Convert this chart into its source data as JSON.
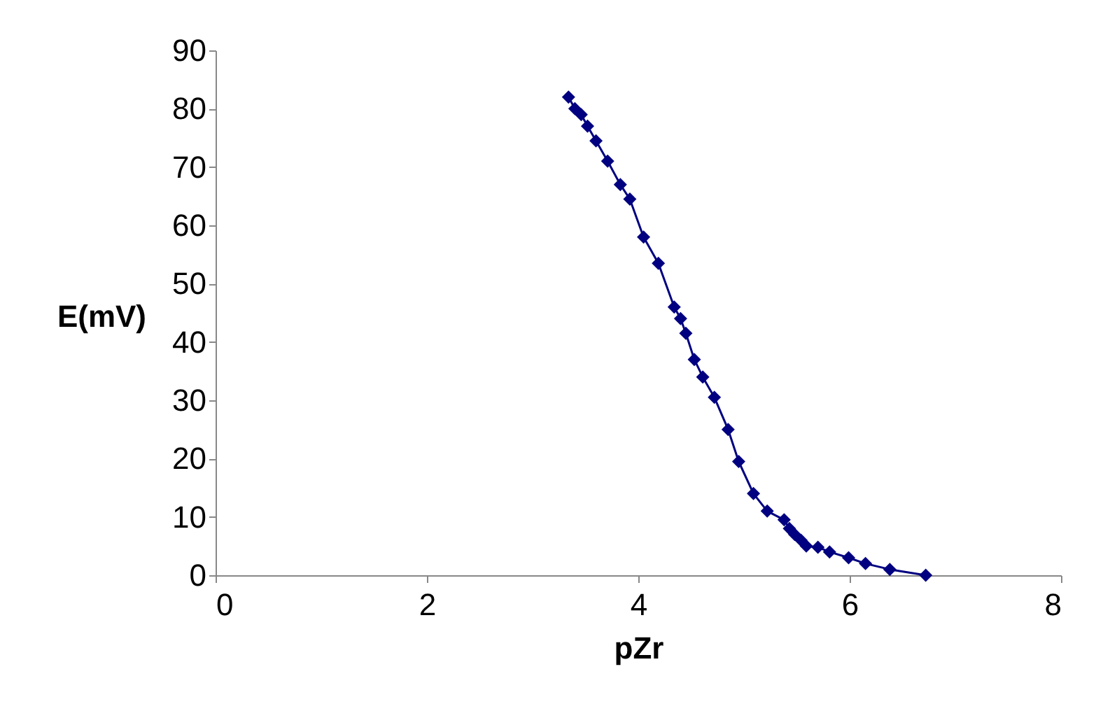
{
  "chart_data": {
    "type": "line",
    "xlabel": "pZr",
    "ylabel": "E(mV)",
    "x": [
      3.34,
      3.4,
      3.46,
      3.52,
      3.6,
      3.71,
      3.83,
      3.92,
      4.05,
      4.19,
      4.34,
      4.4,
      4.45,
      4.53,
      4.61,
      4.72,
      4.85,
      4.95,
      5.09,
      5.22,
      5.38,
      5.43,
      5.48,
      5.54,
      5.59,
      5.7,
      5.81,
      5.99,
      6.15,
      6.38,
      6.72
    ],
    "series": [
      {
        "color": "#000080",
        "values": [
          82,
          80,
          79,
          77,
          74.5,
          71,
          67,
          64.5,
          58,
          53.5,
          46,
          44,
          41.5,
          37,
          34,
          30.5,
          25,
          19.5,
          14,
          11,
          9.5,
          8,
          7,
          6,
          5,
          4.8,
          4,
          3,
          2,
          1,
          0
        ]
      }
    ],
    "xlim": [
      0,
      8
    ],
    "xticks": [
      0,
      2,
      4,
      6,
      8
    ],
    "ylim": [
      0,
      90
    ],
    "yticks": [
      0,
      10,
      20,
      30,
      40,
      50,
      60,
      70,
      80,
      90
    ],
    "marker": "diamond",
    "line_style": "solid"
  }
}
